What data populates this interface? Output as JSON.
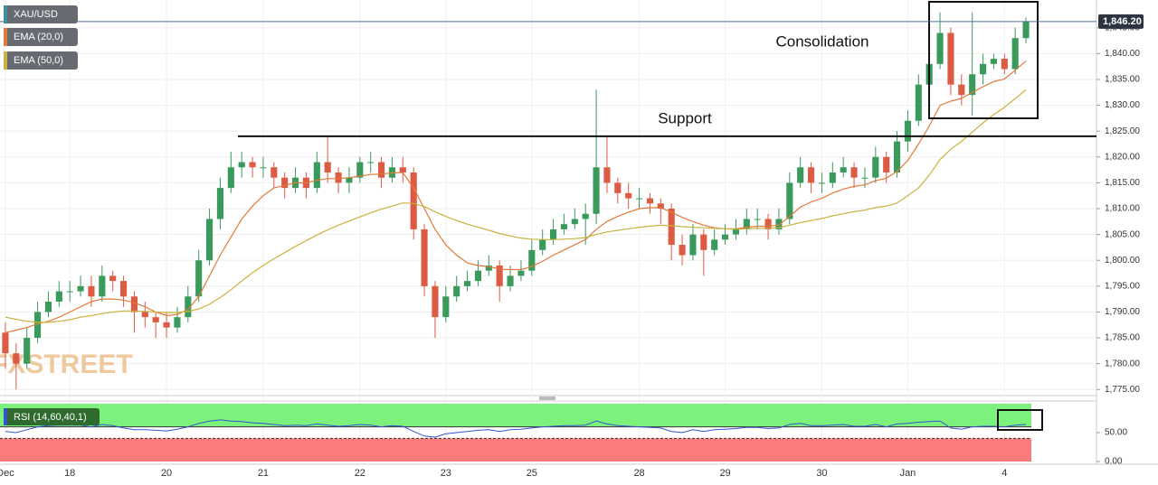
{
  "chart_data": {
    "type": "candlestick",
    "categories": [
      "Dec",
      null,
      null,
      null,
      null,
      null,
      "18",
      null,
      null,
      null,
      null,
      null,
      null,
      null,
      null,
      "20",
      null,
      null,
      null,
      null,
      null,
      null,
      null,
      null,
      "21",
      null,
      null,
      null,
      null,
      null,
      null,
      null,
      null,
      "22",
      null,
      null,
      null,
      null,
      null,
      null,
      null,
      "23",
      null,
      null,
      null,
      null,
      null,
      null,
      null,
      "25",
      null,
      null,
      null,
      null,
      null,
      null,
      null,
      null,
      null,
      "28",
      null,
      null,
      null,
      null,
      null,
      null,
      null,
      "29",
      null,
      null,
      null,
      null,
      null,
      null,
      null,
      null,
      "30",
      null,
      null,
      null,
      null,
      null,
      null,
      null,
      "Jan",
      null,
      null,
      null,
      null,
      null,
      null,
      null,
      null,
      "4",
      null,
      null
    ],
    "series": [
      {
        "name": "XAU/USD",
        "color": "#3d8f9c",
        "up_color": "#3a9a5c",
        "down_color": "#dd5a43",
        "open": [
          1786,
          1782,
          1780,
          1785,
          1790,
          1792,
          1794,
          1794,
          1795,
          1793,
          1797,
          1796,
          1793,
          1790,
          1789,
          1788,
          1787,
          1789,
          1793,
          1800,
          1808,
          1814,
          1818,
          1819,
          1818,
          1818,
          1816,
          1814,
          1816,
          1814,
          1819,
          1817,
          1815,
          1816,
          1819,
          1819,
          1816,
          1818,
          1817,
          1806,
          1795,
          1789,
          1793,
          1795,
          1796,
          1798,
          1799,
          1795,
          1797,
          1798,
          1802,
          1804,
          1806,
          1807,
          1808,
          1809,
          1818,
          1815,
          1813,
          1812,
          1812,
          1811,
          1810,
          1803,
          1801,
          1805,
          1802,
          1804,
          1805,
          1806,
          1808,
          1808,
          1806,
          1808,
          1815,
          1818,
          1815,
          1815,
          1817,
          1818,
          1816,
          1816,
          1820,
          1817,
          1823,
          1827,
          1834,
          1838,
          1844,
          1834,
          1832,
          1836,
          1838,
          1839,
          1837,
          1843
        ],
        "high": [
          1788,
          1784,
          1787,
          1792,
          1794,
          1796,
          1796,
          1797,
          1797,
          1799,
          1798,
          1797,
          1794,
          1792,
          1790,
          1790,
          1791,
          1795,
          1802,
          1810,
          1816,
          1821,
          1821,
          1820,
          1820,
          1819,
          1817,
          1818,
          1817,
          1821,
          1824,
          1818,
          1818,
          1820,
          1821,
          1820,
          1820,
          1820,
          1818,
          1807,
          1796,
          1795,
          1797,
          1798,
          1800,
          1801,
          1800,
          1799,
          1800,
          1804,
          1806,
          1808,
          1809,
          1810,
          1811,
          1833,
          1824,
          1816,
          1815,
          1814,
          1813,
          1812,
          1811,
          1805,
          1807,
          1806,
          1806,
          1807,
          1808,
          1810,
          1810,
          1809,
          1810,
          1817,
          1820,
          1819,
          1817,
          1819,
          1820,
          1819,
          1818,
          1822,
          1821,
          1825,
          1829,
          1836,
          1841,
          1848,
          1845,
          1836,
          1848,
          1840,
          1840,
          1840,
          1845,
          1847
        ],
        "low": [
          1779,
          1775,
          1779,
          1784,
          1789,
          1791,
          1792,
          1793,
          1791,
          1792,
          1794,
          1791,
          1786,
          1787,
          1785,
          1785,
          1786,
          1788,
          1792,
          1799,
          1806,
          1813,
          1816,
          1816,
          1816,
          1814,
          1812,
          1813,
          1812,
          1813,
          1815,
          1813,
          1813,
          1815,
          1817,
          1814,
          1815,
          1815,
          1804,
          1793,
          1785,
          1788,
          1792,
          1794,
          1795,
          1797,
          1792,
          1794,
          1796,
          1797,
          1801,
          1803,
          1805,
          1806,
          1803,
          1807,
          1813,
          1811,
          1810,
          1810,
          1809,
          1807,
          1800,
          1799,
          1800,
          1797,
          1801,
          1803,
          1804,
          1805,
          1806,
          1804,
          1805,
          1807,
          1814,
          1813,
          1813,
          1814,
          1816,
          1814,
          1814,
          1815,
          1815,
          1816,
          1821,
          1826,
          1832,
          1837,
          1832,
          1830,
          1828,
          1834,
          1837,
          1836,
          1836,
          1842
        ],
        "close": [
          1782,
          1780,
          1785,
          1790,
          1792,
          1794,
          1794,
          1795,
          1793,
          1797,
          1796,
          1793,
          1790,
          1789,
          1788,
          1787,
          1789,
          1793,
          1800,
          1808,
          1814,
          1818,
          1819,
          1818,
          1818,
          1816,
          1814,
          1816,
          1814,
          1819,
          1817,
          1815,
          1816,
          1819,
          1819,
          1816,
          1818,
          1817,
          1806,
          1795,
          1789,
          1793,
          1795,
          1796,
          1798,
          1799,
          1795,
          1797,
          1798,
          1802,
          1804,
          1806,
          1807,
          1808,
          1809,
          1818,
          1815,
          1813,
          1812,
          1812,
          1811,
          1810,
          1803,
          1801,
          1805,
          1802,
          1804,
          1805,
          1806,
          1808,
          1808,
          1806,
          1808,
          1815,
          1818,
          1815,
          1815,
          1817,
          1818,
          1816,
          1816,
          1820,
          1817,
          1823,
          1827,
          1834,
          1838,
          1844,
          1834,
          1832,
          1836,
          1838,
          1839,
          1837,
          1843,
          1846.2
        ]
      },
      {
        "name": "EMA (20,0)",
        "color": "#e27a3c",
        "values": [
          1786,
          1786.5,
          1787,
          1787.7,
          1788.2,
          1789,
          1790,
          1791,
          1792,
          1792.5,
          1792.5,
          1792.3,
          1791.8,
          1791,
          1790,
          1789.3,
          1789.5,
          1790.5,
          1793,
          1797,
          1801,
          1804.5,
          1808,
          1810.5,
          1812.5,
          1814,
          1814.5,
          1815,
          1815,
          1815.5,
          1815.8,
          1815.8,
          1816,
          1816.3,
          1816.6,
          1816.7,
          1816.9,
          1817,
          1814,
          1810,
          1806,
          1803,
          1801,
          1799.5,
          1799,
          1798.8,
          1798.3,
          1798.2,
          1798.2,
          1798.8,
          1799.8,
          1801,
          1802,
          1803,
          1804,
          1806,
          1807.5,
          1808.5,
          1809.3,
          1810,
          1810.2,
          1810.2,
          1809.3,
          1808.3,
          1807.5,
          1806.8,
          1806.3,
          1806.1,
          1806.1,
          1806.4,
          1806.6,
          1806.6,
          1806.8,
          1808.5,
          1810.3,
          1811.3,
          1812,
          1813,
          1813.8,
          1814.3,
          1814.6,
          1815.4,
          1815.9,
          1817.2,
          1819.3,
          1822.5,
          1826,
          1830,
          1830.8,
          1831.3,
          1832.5,
          1833.6,
          1834.6,
          1835.1,
          1836.8,
          1838.6
        ]
      },
      {
        "name": "EMA (50,0)",
        "color": "#c9b23f",
        "values": [
          1789,
          1788.6,
          1788.2,
          1788,
          1788,
          1788.2,
          1788.5,
          1789,
          1789.3,
          1789.7,
          1790,
          1790.2,
          1790.2,
          1790.1,
          1790,
          1789.9,
          1789.9,
          1790.1,
          1790.6,
          1791.5,
          1792.8,
          1794.3,
          1796,
          1797.6,
          1799,
          1800.3,
          1801.5,
          1802.7,
          1803.8,
          1804.9,
          1805.9,
          1806.8,
          1807.6,
          1808.4,
          1809.2,
          1809.9,
          1810.5,
          1811.1,
          1811,
          1810.4,
          1809.4,
          1808.5,
          1807.7,
          1807,
          1806.4,
          1805.8,
          1805.2,
          1804.7,
          1804.3,
          1804.1,
          1804,
          1804,
          1804.1,
          1804.2,
          1804.4,
          1805,
          1805.5,
          1805.8,
          1806.1,
          1806.4,
          1806.6,
          1806.8,
          1806.7,
          1806.5,
          1806.4,
          1806.3,
          1806.2,
          1806.1,
          1806,
          1806.1,
          1806.2,
          1806.2,
          1806.3,
          1806.8,
          1807.3,
          1807.7,
          1808.1,
          1808.6,
          1809,
          1809.4,
          1809.7,
          1810.2,
          1810.5,
          1811.1,
          1812.5,
          1814,
          1816.5,
          1819.5,
          1821.5,
          1823,
          1824.8,
          1826.6,
          1828.2,
          1829.6,
          1831.3,
          1833
        ]
      }
    ],
    "ylim": [
      1774,
      1849.5
    ],
    "yticks": [
      {
        "value": 1775,
        "label": "1,775.00"
      },
      {
        "value": 1780,
        "label": "1,780.00"
      },
      {
        "value": 1785,
        "label": "1,785.00"
      },
      {
        "value": 1790,
        "label": "1,790.00"
      },
      {
        "value": 1795,
        "label": "1,795.00"
      },
      {
        "value": 1800,
        "label": "1,800.00"
      },
      {
        "value": 1805,
        "label": "1,805.00"
      },
      {
        "value": 1810,
        "label": "1,810.00"
      },
      {
        "value": 1815,
        "label": "1,815.00"
      },
      {
        "value": 1820,
        "label": "1,820.00"
      },
      {
        "value": 1825,
        "label": "1,825.00"
      },
      {
        "value": 1830,
        "label": "1,830.00"
      },
      {
        "value": 1835,
        "label": "1,835.00"
      },
      {
        "value": 1840,
        "label": "1,840.00"
      },
      {
        "value": 1845,
        "label": "1,845.00"
      }
    ],
    "last_price": {
      "value": 1846.2,
      "label": "1,846.20"
    },
    "support": {
      "text": "Support",
      "value": 1824
    },
    "consolidation": "Consolidation",
    "watermark": "FXSTREET",
    "rsi": {
      "name": "RSI (14,60,40,1)",
      "color": "#3553d1",
      "upper": 60,
      "lower": 40,
      "ylim": [
        0,
        100
      ],
      "yticks": [
        {
          "value": 50,
          "label": "50.00"
        },
        {
          "value": 0,
          "label": "0.00"
        }
      ],
      "values": [
        52,
        50,
        55,
        60,
        62,
        63,
        63,
        63,
        60,
        64,
        62,
        58,
        55,
        55,
        54,
        53,
        56,
        60,
        66,
        70,
        72,
        70,
        69,
        67,
        66,
        64,
        62,
        63,
        62,
        65,
        63,
        61,
        62,
        64,
        63,
        60,
        62,
        61,
        52,
        44,
        42,
        48,
        50,
        52,
        54,
        55,
        52,
        55,
        56,
        58,
        60,
        61,
        62,
        62,
        63,
        70,
        65,
        62,
        61,
        60,
        59,
        58,
        52,
        50,
        55,
        52,
        55,
        56,
        57,
        59,
        59,
        57,
        58,
        64,
        66,
        62,
        62,
        63,
        64,
        61,
        61,
        64,
        60,
        65,
        66,
        68,
        69,
        70,
        58,
        56,
        60,
        61,
        61,
        60,
        63,
        64
      ]
    }
  }
}
